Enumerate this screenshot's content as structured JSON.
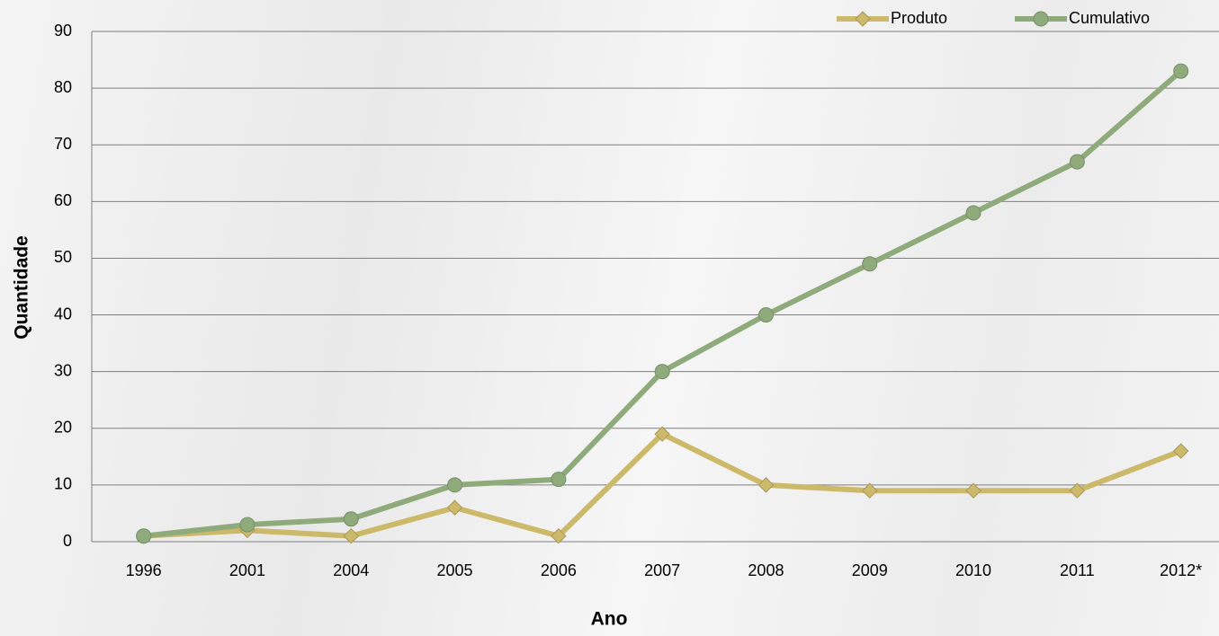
{
  "chart_data": {
    "type": "line",
    "x_label": "Ano",
    "y_label": "Quantidade",
    "categories": [
      "1996",
      "2001",
      "2004",
      "2005",
      "2006",
      "2007",
      "2008",
      "2009",
      "2010",
      "2011",
      "2012*"
    ],
    "series": [
      {
        "name": "Produto",
        "color": "#cdb96a",
        "marker": "diamond",
        "values": [
          1,
          2,
          1,
          6,
          1,
          19,
          10,
          9,
          9,
          9,
          16
        ]
      },
      {
        "name": "Cumulativo",
        "color": "#8fab7b",
        "marker": "circle",
        "values": [
          1,
          3,
          4,
          10,
          11,
          30,
          40,
          49,
          58,
          67,
          83
        ]
      }
    ],
    "ylim": [
      0,
      90
    ],
    "yticks": [
      0,
      10,
      20,
      30,
      40,
      50,
      60,
      70,
      80,
      90
    ],
    "grid": true,
    "legend": "top-right"
  }
}
